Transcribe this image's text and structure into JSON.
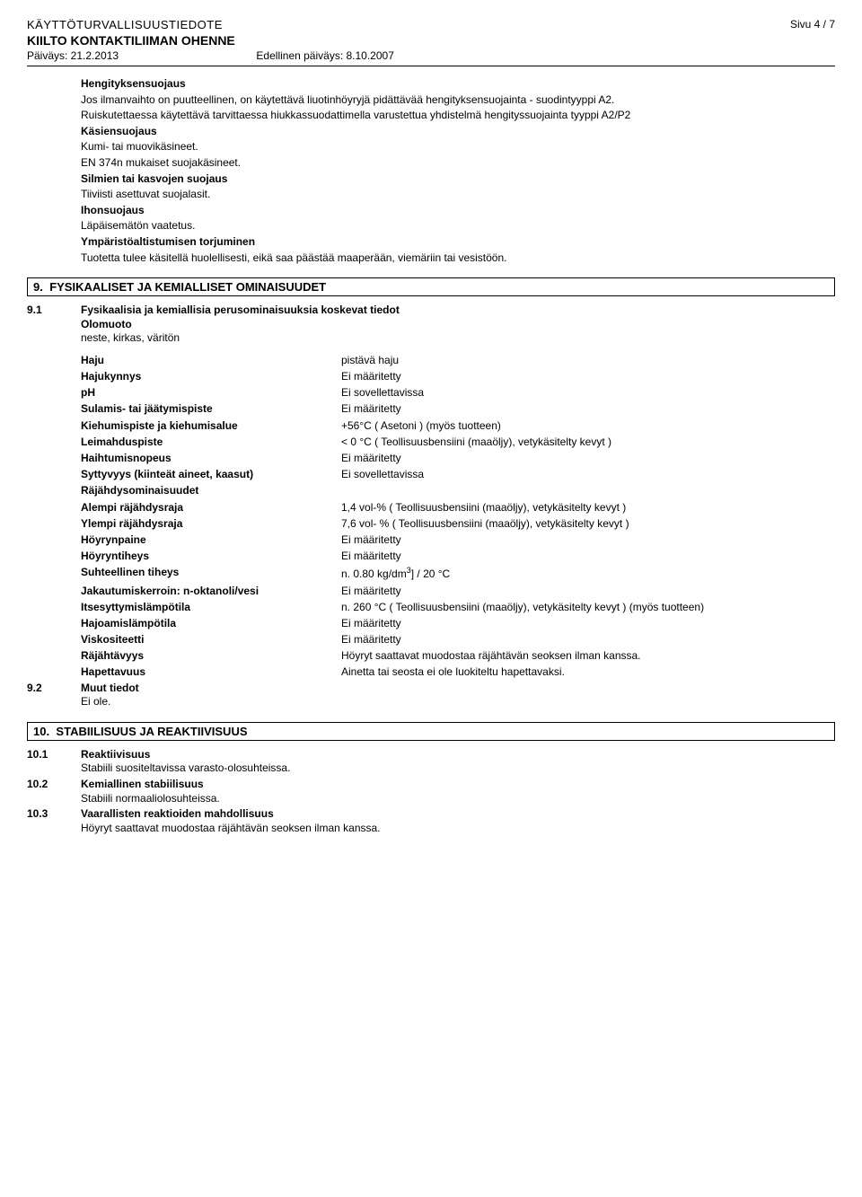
{
  "header": {
    "doc_title": "KÄYTTÖTURVALLISUUSTIEDOTE",
    "product_name": "KIILTO KONTAKTILIIMAN OHENNE",
    "date_label": "Päiväys: 21.2.2013",
    "prev_date_label": "Edellinen päiväys: 8.10.2007",
    "page": "Sivu 4 / 7"
  },
  "section8": {
    "respiratory_title": "Hengityksensuojaus",
    "respiratory_text1": "Jos ilmanvaihto on puutteellinen, on käytettävä liuotinhöyryjä pidättävää hengityksensuojainta - suodintyyppi A2.",
    "respiratory_text2": "Ruiskutettaessa käytettävä tarvittaessa hiukkassuodattimella varustettua yhdistelmä hengityssuojainta tyyppi A2/P2",
    "hands_title": "Käsiensuojaus",
    "hands_text1": "Kumi- tai muovikäsineet.",
    "hands_text2": "EN 374n mukaiset suojakäsineet.",
    "eyes_title": "Silmien tai kasvojen suojaus",
    "eyes_text": "Tiiviisti asettuvat suojalasit.",
    "skin_title": "Ihonsuojaus",
    "skin_text": "Läpäisemätön vaatetus.",
    "env_title": "Ympäristöaltistumisen torjuminen",
    "env_text": "Tuotetta tulee käsitellä huolellisesti, eikä saa päästää maaperään, viemäriin tai vesistöön."
  },
  "section9": {
    "num": "9.",
    "title": "FYSIKAALISET JA KEMIALLISET OMINAISUUDET",
    "sub1_num": "9.1",
    "sub1_title": "Fysikaalisia ja kemiallisia perusominaisuuksia koskevat tiedot",
    "form_label": "Olomuoto",
    "form_value": "neste, kirkas, väritön",
    "sub2_num": "9.2",
    "sub2_title": "Muut tiedot",
    "sub2_text": "Ei ole.",
    "props": [
      {
        "label": "Haju",
        "value": "pistävä  haju"
      },
      {
        "label": "Hajukynnys",
        "value": "Ei määritetty"
      },
      {
        "label": "pH",
        "value": "Ei sovellettavissa"
      },
      {
        "label": "Sulamis- tai jäätymispiste",
        "value": "Ei määritetty"
      },
      {
        "label": "Kiehumispiste ja kiehumisalue",
        "value": "+56°C ( Asetoni ) (myös tuotteen)"
      },
      {
        "label": "Leimahduspiste",
        "value": "< 0 °C ( Teollisuusbensiini (maaöljy), vetykäsitelty kevyt )"
      },
      {
        "label": "Haihtumisnopeus",
        "value": "Ei määritetty"
      },
      {
        "label": "Syttyvyys (kiinteät aineet, kaasut)",
        "value": "Ei sovellettavissa"
      }
    ],
    "explosion_title": "Räjähdysominaisuudet",
    "props2": [
      {
        "label": "Alempi räjähdysraja",
        "value": "1,4 vol-% ( Teollisuusbensiini (maaöljy), vetykäsitelty kevyt )"
      },
      {
        "label": "Ylempi räjähdysraja",
        "value": "7,6 vol- % ( Teollisuusbensiini (maaöljy), vetykäsitelty kevyt )"
      },
      {
        "label": "Höyrynpaine",
        "value": "Ei määritetty"
      },
      {
        "label": "Höyryntiheys",
        "value": "Ei määritetty"
      }
    ],
    "density_label": "Suhteellinen tiheys",
    "density_value_pre": "n. 0.80 kg/dm",
    "density_value_post": "] / 20 °C",
    "props3": [
      {
        "label": "Jakautumiskerroin: n-oktanoli/vesi",
        "value": "Ei määritetty"
      },
      {
        "label": "Itsesyttymislämpötila",
        "value": "n. 260 °C ( Teollisuusbensiini (maaöljy), vetykäsitelty kevyt ) (myös tuotteen)"
      },
      {
        "label": "Hajoamislämpötila",
        "value": "Ei määritetty"
      },
      {
        "label": "Viskositeetti",
        "value": "Ei määritetty"
      },
      {
        "label": "Räjähtävyys",
        "value": "Höyryt saattavat muodostaa räjähtävän seoksen ilman kanssa."
      },
      {
        "label": "Hapettavuus",
        "value": "Ainetta tai seosta ei ole luokiteltu hapettavaksi."
      }
    ]
  },
  "section10": {
    "num": "10.",
    "title": "STABIILISUUS JA REAKTIIVISUUS",
    "items": [
      {
        "num": "10.1",
        "title": "Reaktiivisuus",
        "text": "Stabiili suositeltavissa varasto-olosuhteissa."
      },
      {
        "num": "10.2",
        "title": "Kemiallinen stabiilisuus",
        "text": "Stabiili normaaliolosuhteissa."
      },
      {
        "num": "10.3",
        "title": "Vaarallisten reaktioiden mahdollisuus",
        "text": "Höyryt saattavat muodostaa räjähtävän seoksen ilman kanssa."
      }
    ]
  }
}
